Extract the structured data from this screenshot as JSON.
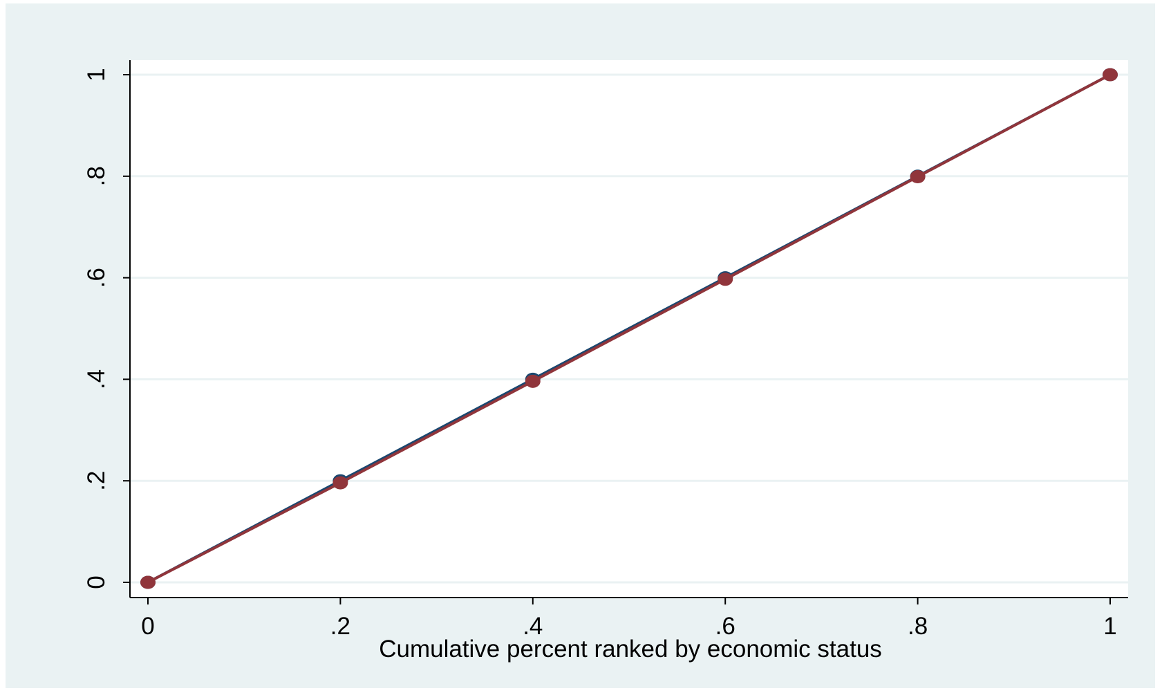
{
  "chart_data": {
    "type": "line",
    "title": "",
    "xlabel": "Cumulative percent ranked by economic status",
    "ylabel": "",
    "xlim": [
      0,
      1
    ],
    "ylim": [
      0,
      1
    ],
    "x_ticks": [
      0,
      0.2,
      0.4,
      0.6,
      0.8,
      1
    ],
    "x_tick_labels": [
      "0",
      ".2",
      ".4",
      ".6",
      ".8",
      "1"
    ],
    "y_ticks": [
      0,
      0.2,
      0.4,
      0.6,
      0.8,
      1
    ],
    "y_tick_labels": [
      "0",
      ".2",
      ".4",
      ".6",
      ".8",
      "1"
    ],
    "grid": "horizontal",
    "legend": "none",
    "series": [
      {
        "x": [
          0,
          0.2,
          0.4,
          0.6,
          0.8,
          1
        ],
        "y": [
          0,
          0.2,
          0.4,
          0.6,
          0.8,
          1
        ],
        "color": "#1a476f"
      },
      {
        "x": [
          0,
          0.2,
          0.4,
          0.6,
          0.8,
          1
        ],
        "y": [
          0,
          0.196,
          0.396,
          0.597,
          0.799,
          1
        ],
        "color": "#90353b"
      }
    ],
    "colors": {
      "outer_background": "#eaf2f3",
      "plot_background": "#ffffff",
      "gridline": "#eaf2f3",
      "axis": "#000000"
    }
  }
}
